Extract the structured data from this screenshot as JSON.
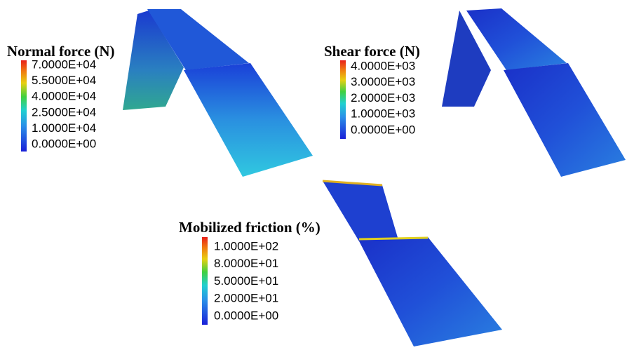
{
  "panels": [
    {
      "title": "Normal force (N)",
      "labels": [
        "7.0000E+04",
        "5.5000E+04",
        "4.0000E+04",
        "2.5000E+04",
        "1.0000E+04",
        "0.0000E+00"
      ]
    },
    {
      "title": "Shear force (N)",
      "labels": [
        "4.0000E+03",
        "3.0000E+03",
        "2.0000E+03",
        "1.0000E+03",
        "0.0000E+00"
      ]
    },
    {
      "title": "Mobilized friction (%)",
      "labels": [
        "1.0000E+02",
        "8.0000E+01",
        "5.0000E+01",
        "2.0000E+01",
        "0.0000E+00"
      ]
    }
  ]
}
